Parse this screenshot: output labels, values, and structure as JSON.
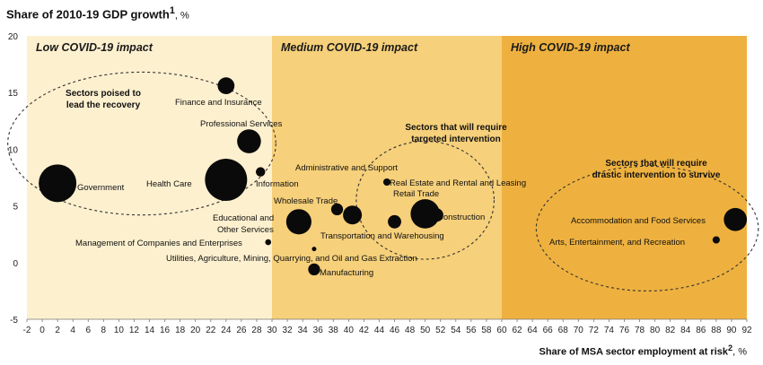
{
  "title": {
    "main": "Share of 2010-19 GDP growth",
    "sup": "1",
    "unit": ", %"
  },
  "x_axis_title": {
    "main": "Share of MSA sector  employment at risk",
    "sup": "2",
    "unit": ", %"
  },
  "zones": [
    {
      "label": "Low COVID-19 impact",
      "from": -2,
      "to": 30,
      "color": "#fdf0cf"
    },
    {
      "label": "Medium COVID-19 impact",
      "from": 30,
      "to": 60,
      "color": "#f6d07a"
    },
    {
      "label": "High COVID-19 impact",
      "from": 60,
      "to": 92,
      "color": "#eeb13f"
    }
  ],
  "group_labels": [
    {
      "lines": [
        "Sectors poised to",
        "lead the recovery"
      ]
    },
    {
      "lines": [
        "Sectors that will require",
        "targeted intervention"
      ]
    },
    {
      "lines": [
        "Sectors that will require",
        "drastic intervention to survive"
      ]
    }
  ],
  "chart_data": {
    "type": "scatter",
    "title": "Share of 2010-19 GDP growth1, %",
    "xlabel": "Share of MSA sector  employment at risk2, %",
    "ylabel": "",
    "xlim": [
      -2,
      92
    ],
    "ylim": [
      -5,
      20
    ],
    "x_ticks": [
      -2,
      0,
      2,
      4,
      6,
      8,
      10,
      12,
      14,
      16,
      18,
      20,
      22,
      24,
      26,
      28,
      30,
      32,
      34,
      36,
      38,
      40,
      42,
      44,
      46,
      48,
      50,
      52,
      54,
      56,
      58,
      60,
      62,
      64,
      66,
      68,
      70,
      72,
      74,
      76,
      78,
      80,
      82,
      84,
      86,
      88,
      90,
      92
    ],
    "y_ticks": [
      -5,
      0,
      5,
      10,
      15,
      20
    ],
    "points": [
      {
        "name": "Government",
        "x": 2.0,
        "y": 7.0,
        "size": 4.0
      },
      {
        "name": "Finance and Insurance",
        "x": 24.0,
        "y": 15.6,
        "size": 0.8
      },
      {
        "name": "Professional Services",
        "x": 27.0,
        "y": 10.7,
        "size": 1.6
      },
      {
        "name": "Health Care",
        "x": 24.0,
        "y": 7.3,
        "size": 5.0
      },
      {
        "name": "Information",
        "x": 28.5,
        "y": 8.0,
        "size": 0.25
      },
      {
        "name": "Educational and Other Services",
        "x": 33.5,
        "y": 3.6,
        "size": 1.8
      },
      {
        "name": "Management of Companies and Enterprises",
        "x": 29.5,
        "y": 1.8,
        "size": 0.1
      },
      {
        "name": "Utilities, Agriculture, Mining, Quarrying, and Oil and Gas Extraction",
        "x": 35.5,
        "y": 1.2,
        "size": 0.05
      },
      {
        "name": "Manufacturing",
        "x": 35.5,
        "y": -0.6,
        "size": 0.4
      },
      {
        "name": "Wholesale Trade",
        "x": 38.5,
        "y": 4.7,
        "size": 0.4
      },
      {
        "name": "Administrative and Support",
        "x": 40.5,
        "y": 4.2,
        "size": 1.0
      },
      {
        "name": "Transportation and Warehousing",
        "x": 46.0,
        "y": 3.6,
        "size": 0.5
      },
      {
        "name": "Real Estate and Rental and Leasing",
        "x": 45.0,
        "y": 7.1,
        "size": 0.15
      },
      {
        "name": "Retail Trade",
        "x": 50.0,
        "y": 4.3,
        "size": 2.4
      },
      {
        "name": "Construction",
        "x": 51.5,
        "y": 4.2,
        "size": 0.5
      },
      {
        "name": "Accommodation and Food Services",
        "x": 90.5,
        "y": 3.8,
        "size": 1.5
      },
      {
        "name": "Arts, Entertainment, and Recreation",
        "x": 88.0,
        "y": 2.0,
        "size": 0.15
      }
    ],
    "grid": false,
    "legend": "none"
  }
}
